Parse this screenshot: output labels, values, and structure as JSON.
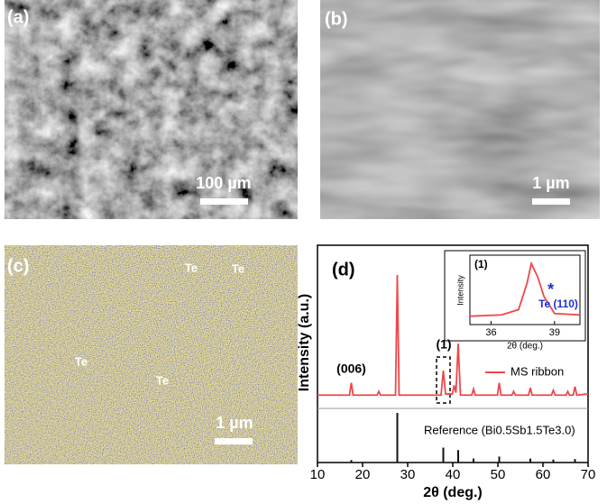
{
  "panels": [
    {
      "label": "(a)",
      "scale_bar": "100 µm"
    },
    {
      "label": "(b)",
      "scale_bar": "1 µm"
    },
    {
      "label": "(c)",
      "scale_bar": "1 µm",
      "annotations": [
        "Te",
        "Te",
        "Te",
        "Te"
      ]
    }
  ],
  "chart_data": {
    "type": "line",
    "label": "(d)",
    "xlabel": "2θ (deg.)",
    "ylabel": "Intensity (a.u.)",
    "xlim": [
      10,
      70
    ],
    "xticks": [
      10,
      20,
      30,
      40,
      50,
      60,
      70
    ],
    "ylim": [
      0,
      100
    ],
    "y2lim": [
      0,
      100
    ],
    "series": [
      {
        "name": "MS ribbon",
        "color": "#f0474a",
        "x": [
          10,
          17.1,
          17.5,
          17.9,
          23.2,
          23.6,
          24.0,
          27.3,
          27.7,
          28.1,
          37.4,
          37.9,
          38.4,
          39.9,
          40.3,
          40.7,
          41.2,
          41.7,
          44.2,
          44.6,
          45.0,
          49.9,
          50.3,
          50.7,
          53.1,
          53.5,
          53.9,
          56.8,
          57.2,
          57.6,
          61.9,
          62.3,
          62.7,
          65.1,
          65.5,
          65.9,
          66.7,
          67.1,
          67.5,
          70
        ],
        "values": [
          2,
          2,
          12,
          2,
          2,
          5,
          2,
          2,
          100,
          2,
          2,
          22,
          3,
          3,
          10,
          4,
          44,
          2,
          2,
          7,
          2,
          2,
          12,
          2,
          2,
          5,
          2,
          2,
          8,
          2,
          2,
          6,
          2,
          2,
          5,
          2,
          2,
          9,
          2,
          3
        ]
      },
      {
        "name": "Reference (Bi0.5Sb1.5Te3.0)",
        "color": "#111111",
        "axis": "y2",
        "x": [
          17.5,
          27.7,
          37.9,
          41.2,
          44.6,
          50.3,
          57.2,
          62.3,
          67.1
        ],
        "values": [
          5,
          100,
          30,
          25,
          8,
          12,
          8,
          6,
          7
        ]
      }
    ],
    "annotations": [
      {
        "text": "(006)",
        "x": 17.5
      },
      {
        "text": "(1)",
        "x": 38
      }
    ],
    "inset": {
      "label": "(1)",
      "ylabel": "Intensity",
      "xlabel": "2θ (deg.)",
      "xlim": [
        35,
        40.2
      ],
      "xticks": [
        36,
        39
      ],
      "ylim": [
        0,
        100
      ],
      "color": "#f0474a",
      "x": [
        35,
        36.5,
        37.3,
        37.7,
        37.9,
        38.2,
        38.5,
        39,
        40.2
      ],
      "values": [
        10,
        12,
        20,
        60,
        90,
        70,
        40,
        14,
        12
      ],
      "marker": "*",
      "marker_label": "Te (110)"
    }
  }
}
